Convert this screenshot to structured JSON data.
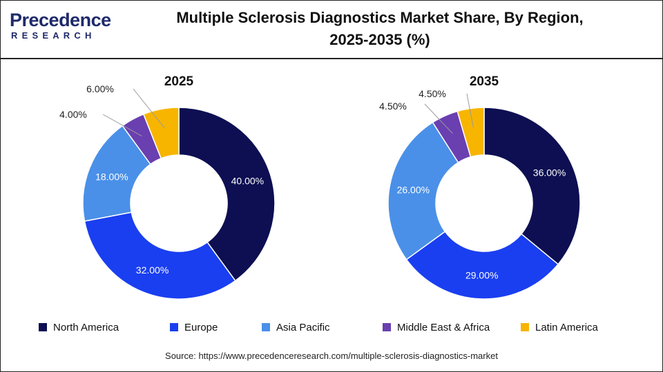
{
  "header": {
    "logo_word": "Precedence",
    "logo_sub": "RESEARCH",
    "title_line1": "Multiple Sclerosis Diagnostics Market Share, By Region,",
    "title_line2": "2025-2035 (%)"
  },
  "chart_data": [
    {
      "type": "pie",
      "variant": "donut",
      "title": "2025",
      "categories": [
        "North America",
        "Europe",
        "Asia Pacific",
        "Middle East & Africa",
        "Latin America"
      ],
      "values": [
        40,
        32,
        18,
        4,
        6
      ],
      "labels": [
        "40.00%",
        "32.00%",
        "18.00%",
        "4.00%",
        "6.00%"
      ]
    },
    {
      "type": "pie",
      "variant": "donut",
      "title": "2035",
      "categories": [
        "North America",
        "Europe",
        "Asia Pacific",
        "Middle East & Africa",
        "Latin America"
      ],
      "values": [
        36,
        29,
        26,
        4.5,
        4.5
      ],
      "labels": [
        "36.00%",
        "29.00%",
        "26.00%",
        "4.50%",
        "4.50%"
      ]
    }
  ],
  "colors": {
    "North America": "#0d0f52",
    "Europe": "#1a3ff0",
    "Asia Pacific": "#4a90e8",
    "Middle East & Africa": "#6a3fb0",
    "Latin America": "#f7b500"
  },
  "legend": {
    "position": "bottom",
    "items": [
      "North America",
      "Europe",
      "Asia Pacific",
      "Middle East & Africa",
      "Latin America"
    ]
  },
  "source": "Source: https://www.precedenceresearch.com/multiple-sclerosis-diagnostics-market"
}
